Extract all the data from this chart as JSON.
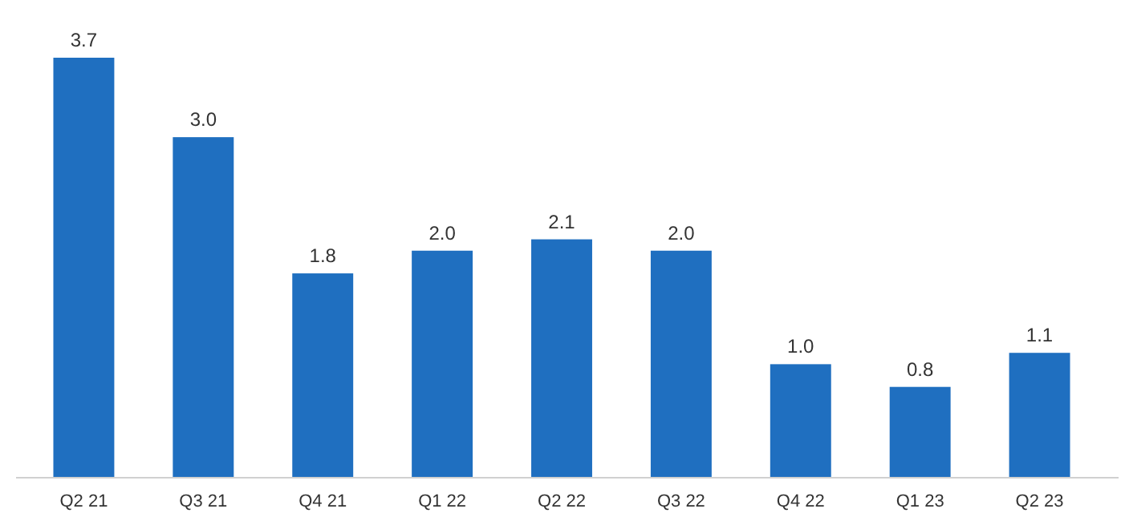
{
  "chart_data": {
    "type": "bar",
    "categories": [
      "Q2 21",
      "Q3 21",
      "Q4 21",
      "Q1 22",
      "Q2 22",
      "Q3 22",
      "Q4 22",
      "Q1 23",
      "Q2 23"
    ],
    "values": [
      3.7,
      3.0,
      1.8,
      2.0,
      2.1,
      2.0,
      1.0,
      0.8,
      1.1
    ],
    "value_labels": [
      "3.7",
      "3.0",
      "1.8",
      "2.0",
      "2.1",
      "2.0",
      "1.0",
      "0.8",
      "1.1"
    ],
    "color": "#1f6fc0"
  }
}
